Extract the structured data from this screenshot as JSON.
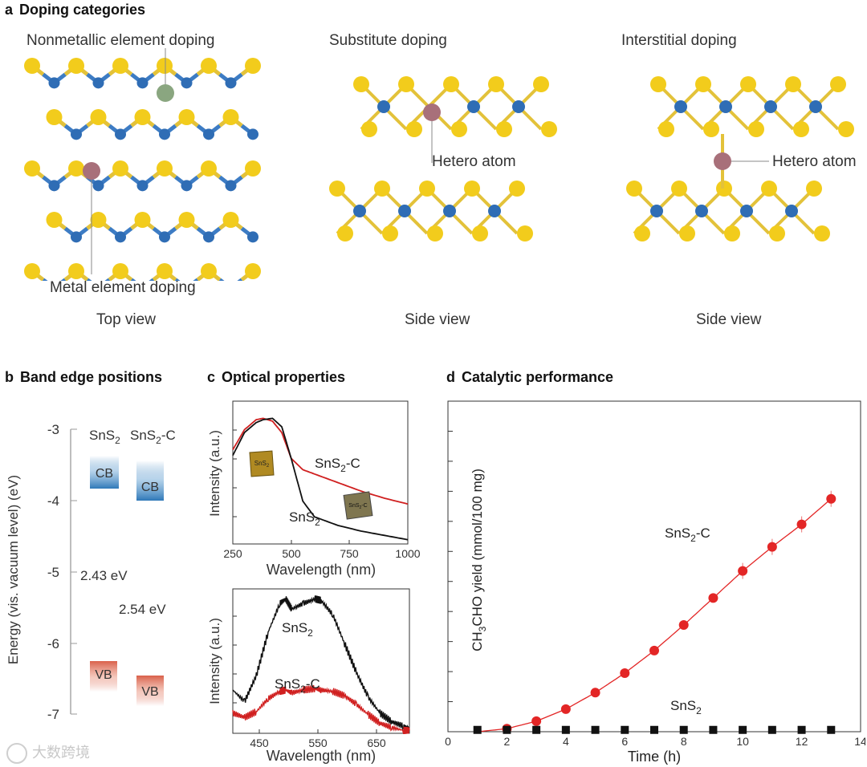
{
  "panel_a": {
    "letter": "a",
    "title": "Doping categories",
    "top": {
      "label_nonmetal": "Nonmetallic element doping",
      "label_metal": "Metal element doping",
      "view": "Top view"
    },
    "substitute": {
      "title": "Substitute doping",
      "hetero": "Hetero atom",
      "view": "Side view"
    },
    "interstitial": {
      "title": "Interstitial doping",
      "hetero": "Hetero atom",
      "view": "Side view"
    },
    "colors": {
      "sulfur": "#f2cc1c",
      "tin": "#2f6db5",
      "bond_s": "#e3c23a",
      "bond_sn": "#3d7cc4",
      "nonmetal": "#8aa680",
      "metal": "#a8707a"
    }
  },
  "panel_b": {
    "letter": "b",
    "title": "Band edge positions",
    "ylabel": "Energy (vis. vacuum level) (eV)",
    "yticks": [
      "-3",
      "-4",
      "-5",
      "-6",
      "-7"
    ],
    "col1": "SnS",
    "col1_sub": "2",
    "col2": "SnS",
    "col2_sub": "2",
    "col2_suffix": "-C",
    "cb": "CB",
    "vb": "VB",
    "gap1": "2.43 eV",
    "gap2": "2.54 eV",
    "bands": {
      "SnS2": {
        "cb_bottom": -3.82,
        "vb_top": -6.25
      },
      "SnS2-C": {
        "cb_bottom": -3.98,
        "vb_top": -6.52
      }
    },
    "colors": {
      "cb": "#2e78b8",
      "vb": "#d9604a"
    }
  },
  "panel_c": {
    "letter": "c",
    "title": "Optical properties",
    "top_chart": {
      "ylabel": "Intensity (a.u.)",
      "xlabel": "Wavelength (nm)",
      "xticks": [
        "250",
        "500",
        "750",
        "1000"
      ],
      "label_c": "SnS",
      "label_c_sub": "2",
      "label_c_suffix": "-C",
      "label_s": "SnS",
      "label_s_sub": "2",
      "inset1": "SnS",
      "inset1_sub": "2",
      "inset2": "SnS",
      "inset2_sub": "2",
      "inset2_suffix": "-C"
    },
    "bottom_chart": {
      "ylabel": "Intensity (a.u.)",
      "xlabel": "Wavelength (nm)",
      "xticks": [
        "450",
        "550",
        "650"
      ],
      "label_s": "SnS",
      "label_s_sub": "2",
      "label_c": "SnS",
      "label_c_sub": "2",
      "label_c_suffix": "-C"
    }
  },
  "panel_d": {
    "letter": "d",
    "title": "Catalytic performance"
  },
  "chart_data": [
    {
      "type": "line",
      "title": "",
      "xlabel": "Wavelength (nm)",
      "ylabel": "Intensity (a.u.)",
      "xlim": [
        250,
        1000
      ],
      "x": [
        250,
        300,
        350,
        380,
        420,
        460,
        500,
        550,
        600,
        700,
        800,
        900,
        1000
      ],
      "series": [
        {
          "name": "SnS2-C",
          "color": "#d02020",
          "values": [
            0.66,
            0.8,
            0.87,
            0.88,
            0.86,
            0.78,
            0.6,
            0.52,
            0.49,
            0.43,
            0.37,
            0.32,
            0.28
          ]
        },
        {
          "name": "SnS2",
          "color": "#111111",
          "values": [
            0.62,
            0.78,
            0.85,
            0.87,
            0.88,
            0.82,
            0.6,
            0.3,
            0.19,
            0.13,
            0.09,
            0.06,
            0.03
          ]
        }
      ]
    },
    {
      "type": "line",
      "title": "",
      "xlabel": "Wavelength (nm)",
      "ylabel": "Intensity (a.u.)",
      "xlim": [
        400,
        700
      ],
      "x": [
        400,
        420,
        440,
        460,
        480,
        490,
        500,
        520,
        540,
        550,
        570,
        590,
        610,
        630,
        650,
        670,
        690,
        700
      ],
      "series": [
        {
          "name": "SnS2",
          "color": "#111111",
          "values": [
            0.3,
            0.22,
            0.4,
            0.7,
            0.9,
            0.93,
            0.86,
            0.9,
            0.93,
            0.92,
            0.82,
            0.62,
            0.42,
            0.25,
            0.14,
            0.08,
            0.05,
            0.04
          ]
        },
        {
          "name": "SnS2-C",
          "color": "#d02020",
          "values": [
            0.14,
            0.11,
            0.15,
            0.24,
            0.29,
            0.3,
            0.28,
            0.3,
            0.31,
            0.3,
            0.29,
            0.26,
            0.2,
            0.13,
            0.07,
            0.04,
            0.02,
            0.02
          ]
        }
      ]
    },
    {
      "type": "line",
      "title": "",
      "xlabel": "Time (h)",
      "ylabel": "CH3CHO yield (mmol/100 mg)",
      "xlim": [
        0,
        14
      ],
      "ylim": [
        0,
        11
      ],
      "xticks": [
        "0",
        "2",
        "4",
        "6",
        "8",
        "10",
        "12",
        "14"
      ],
      "x": [
        1,
        2,
        3,
        4,
        5,
        6,
        7,
        8,
        9,
        10,
        11,
        12,
        13
      ],
      "series": [
        {
          "name": "SnS2-C",
          "color": "#e32626",
          "values": [
            0.0,
            0.1,
            0.35,
            0.75,
            1.3,
            1.95,
            2.7,
            3.55,
            4.45,
            5.35,
            6.15,
            6.9,
            7.75
          ]
        },
        {
          "name": "SnS2",
          "color": "#111111",
          "values": [
            0.06,
            0.06,
            0.06,
            0.06,
            0.06,
            0.06,
            0.06,
            0.06,
            0.06,
            0.06,
            0.06,
            0.06,
            0.06
          ]
        }
      ],
      "labels": {
        "c": "SnS",
        "c_sub": "2",
        "c_suffix": "-C",
        "s": "SnS",
        "s_sub": "2"
      }
    }
  ],
  "watermark": "大数跨境"
}
